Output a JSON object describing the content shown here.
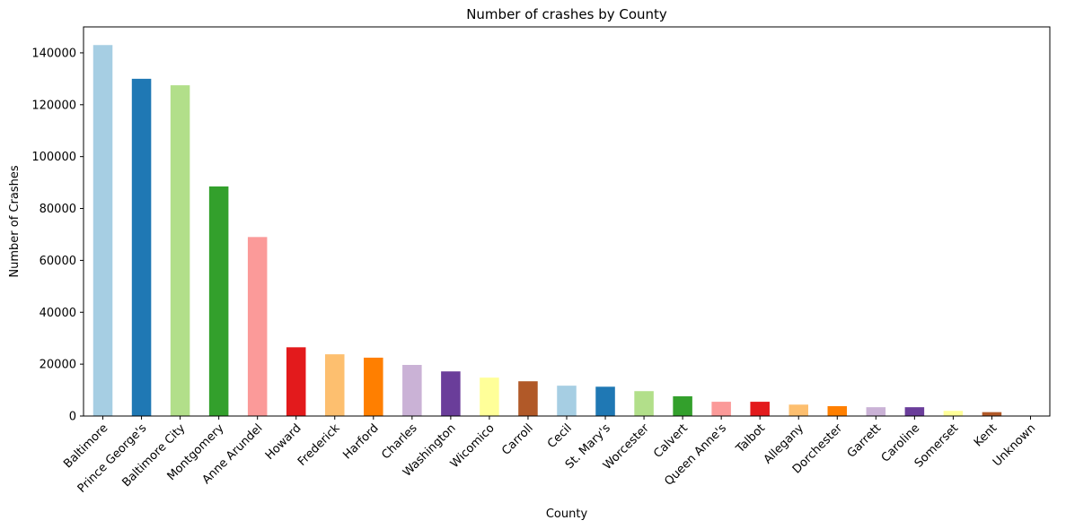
{
  "chart_data": {
    "type": "bar",
    "title": "Number of crashes by County",
    "xlabel": "County",
    "ylabel": "Number of Crashes",
    "ylim": [
      0,
      150000
    ],
    "yticks": [
      0,
      20000,
      40000,
      60000,
      80000,
      100000,
      120000,
      140000
    ],
    "grid": false,
    "categories": [
      "Baltimore",
      "Prince George's",
      "Baltimore City",
      "Montgomery",
      "Anne Arundel",
      "Howard",
      "Frederick",
      "Harford",
      "Charles",
      "Washington",
      "Wicomico",
      "Carroll",
      "Cecil",
      "St. Mary's",
      "Worcester",
      "Calvert",
      "Queen Anne's",
      "Talbot",
      "Allegany",
      "Dorchester",
      "Garrett",
      "Caroline",
      "Somerset",
      "Kent",
      "Unknown"
    ],
    "values": [
      143000,
      130000,
      127500,
      88500,
      69000,
      26500,
      23800,
      22500,
      19700,
      17200,
      14800,
      13400,
      11700,
      11300,
      9600,
      7600,
      5500,
      5500,
      4400,
      3800,
      3400,
      3400,
      2000,
      1500,
      0
    ],
    "colors": [
      "#a6cee3",
      "#1f78b4",
      "#b2df8a",
      "#33a02c",
      "#fb9a99",
      "#e31a1c",
      "#fdbf6f",
      "#ff7f00",
      "#cab2d6",
      "#6a3d9a",
      "#ffff99",
      "#b15928",
      "#a6cee3",
      "#1f78b4",
      "#b2df8a",
      "#33a02c",
      "#fb9a99",
      "#e31a1c",
      "#fdbf6f",
      "#ff7f00",
      "#cab2d6",
      "#6a3d9a",
      "#ffff99",
      "#b15928",
      "#a6cee3"
    ]
  }
}
